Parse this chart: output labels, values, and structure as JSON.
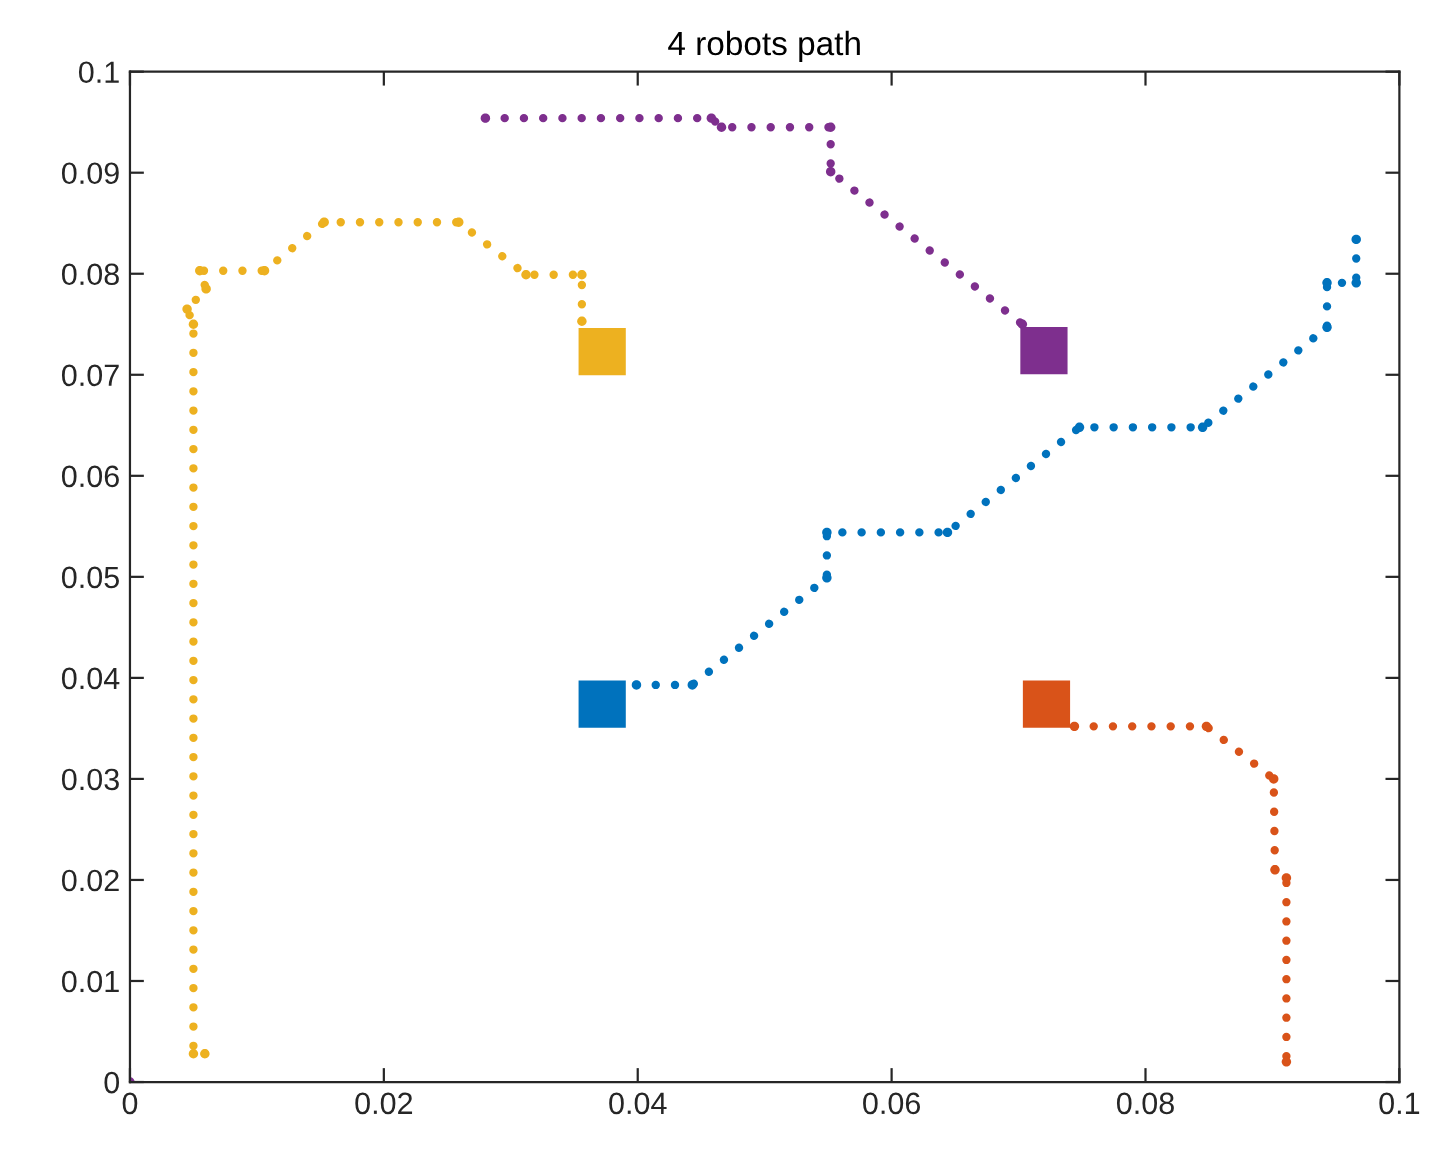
{
  "chart_data": {
    "type": "line",
    "title": "4 robots path",
    "line_style": "dotted",
    "marker": "circle",
    "grid": false,
    "xlim": [
      0,
      0.1
    ],
    "ylim": [
      0,
      0.1
    ],
    "xticks": [
      0,
      0.02,
      0.04,
      0.06,
      0.08,
      0.1
    ],
    "yticks": [
      0,
      0.01,
      0.02,
      0.03,
      0.04,
      0.05,
      0.06,
      0.07,
      0.08,
      0.09,
      0.1
    ],
    "series": [
      {
        "color": "#0072bd",
        "x": [
          0.0399,
          0.0443,
          0.0549,
          0.0549,
          0.0644,
          0.0748,
          0.0845,
          0.0943,
          0.0943,
          0.0966,
          0.0966
        ],
        "values": [
          0.0393,
          0.0393,
          0.0499,
          0.0544,
          0.0544,
          0.0648,
          0.0648,
          0.0747,
          0.0791,
          0.0791,
          0.0834
        ]
      },
      {
        "color": "#d95319",
        "x": [
          0.0744,
          0.0848,
          0.0901,
          0.0902,
          0.0911,
          0.0911
        ],
        "values": [
          0.0352,
          0.0352,
          0.03,
          0.021,
          0.0202,
          0.002
        ]
      },
      {
        "color": "#edb120",
        "x": [
          0.0059,
          0.005,
          0.005,
          0.0045,
          0.006,
          0.0055,
          0.0106,
          0.0153,
          0.0259,
          0.0312,
          0.0356,
          0.0356
        ],
        "values": [
          0.0028,
          0.0028,
          0.075,
          0.0765,
          0.0785,
          0.0803,
          0.0803,
          0.0851,
          0.0851,
          0.0799,
          0.0799,
          0.0753
        ]
      },
      {
        "color": "#7e2f8e",
        "x": [
          0.028,
          0.0458,
          0.0466,
          0.0552,
          0.0552,
          0.0703
        ],
        "values": [
          0.0954,
          0.0954,
          0.0945,
          0.0945,
          0.0901,
          0.075
        ]
      },
      {
        "color": "#7e2f8e",
        "type": "scatter",
        "marker": "circle",
        "x": [
          0
        ],
        "values": [
          0
        ]
      },
      {
        "color": "#0072bd",
        "type": "scatter",
        "marker": "square",
        "x": [
          0.0372
        ],
        "values": [
          0.0374
        ]
      },
      {
        "color": "#d95319",
        "type": "scatter",
        "marker": "square",
        "x": [
          0.0722
        ],
        "values": [
          0.0374
        ]
      },
      {
        "color": "#edb120",
        "type": "scatter",
        "marker": "square",
        "x": [
          0.0372
        ],
        "values": [
          0.0723
        ]
      },
      {
        "color": "#7e2f8e",
        "type": "scatter",
        "marker": "square",
        "x": [
          0.072
        ],
        "values": [
          0.0724
        ]
      }
    ]
  }
}
